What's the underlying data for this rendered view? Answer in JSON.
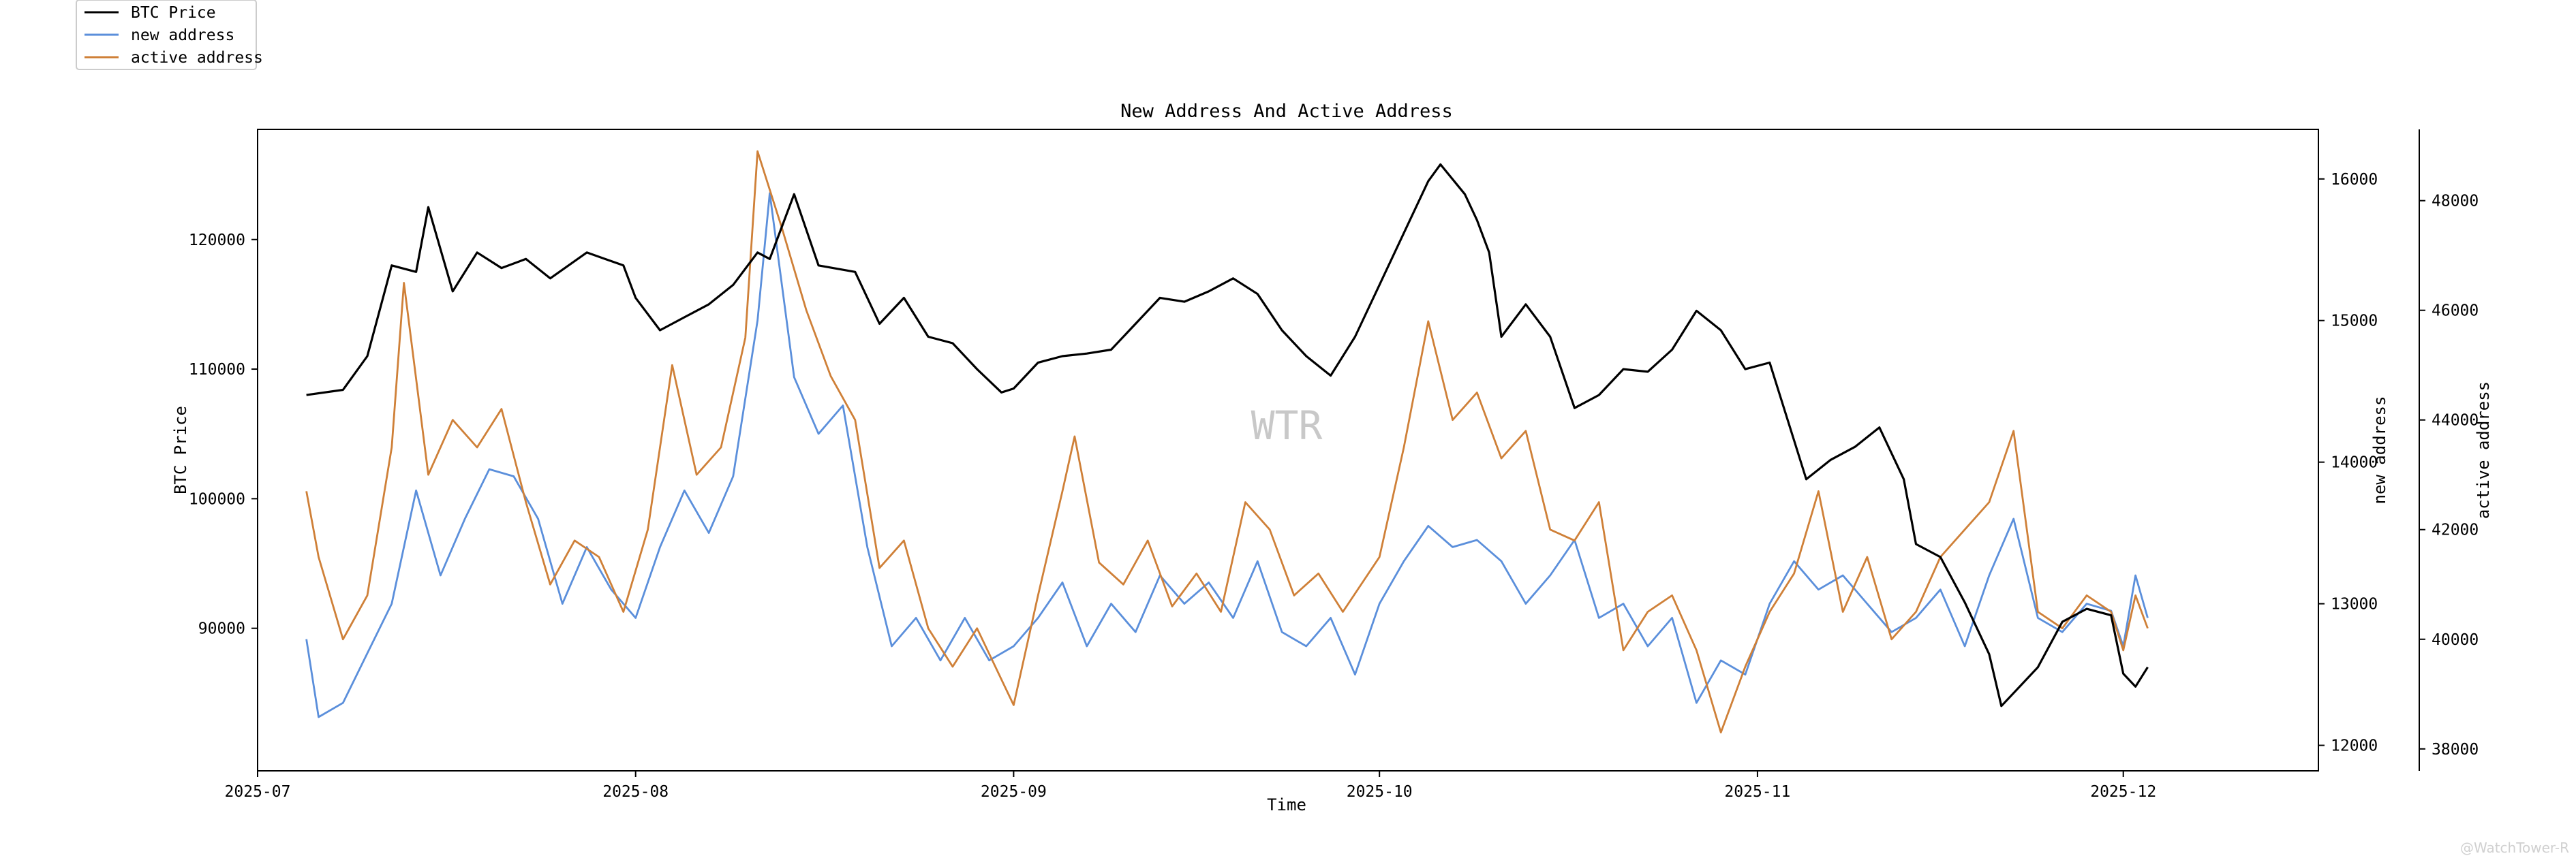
{
  "chart_data": {
    "type": "line",
    "title": "New Address And Active Address",
    "xlabel": "Time",
    "watermark": "WTR",
    "credit": "@WatchTower-R",
    "x_range": [
      "2025-07-01",
      "2025-12-17"
    ],
    "x_ticks": [
      "2025-07",
      "2025-08",
      "2025-09",
      "2025-10",
      "2025-11",
      "2025-12"
    ],
    "axes": [
      {
        "id": "price",
        "label": "BTC Price",
        "side": "left",
        "ylim": [
          79000,
          128500
        ],
        "ticks": [
          90000,
          100000,
          110000,
          120000
        ]
      },
      {
        "id": "new",
        "label": "new address",
        "side": "right",
        "ylim": [
          11820,
          16350
        ],
        "ticks": [
          12000,
          13000,
          14000,
          15000,
          16000
        ]
      },
      {
        "id": "active",
        "label": "active address",
        "side": "right-outer",
        "ylim": [
          37600,
          49300
        ],
        "ticks": [
          38000,
          40000,
          42000,
          44000,
          46000,
          48000
        ]
      }
    ],
    "legend": {
      "placement": "top-left outside"
    },
    "grid": false,
    "series": [
      {
        "name": "BTC Price",
        "axis": "price",
        "color": "#000000",
        "points": [
          [
            "2025-07-05",
            108000
          ],
          [
            "2025-07-08",
            108400
          ],
          [
            "2025-07-10",
            111000
          ],
          [
            "2025-07-12",
            118000
          ],
          [
            "2025-07-14",
            117500
          ],
          [
            "2025-07-15",
            122500
          ],
          [
            "2025-07-17",
            116000
          ],
          [
            "2025-07-19",
            119000
          ],
          [
            "2025-07-21",
            117800
          ],
          [
            "2025-07-23",
            118500
          ],
          [
            "2025-07-25",
            117000
          ],
          [
            "2025-07-28",
            119000
          ],
          [
            "2025-07-31",
            118000
          ],
          [
            "2025-08-01",
            115500
          ],
          [
            "2025-08-03",
            113000
          ],
          [
            "2025-08-05",
            114000
          ],
          [
            "2025-08-07",
            115000
          ],
          [
            "2025-08-09",
            116500
          ],
          [
            "2025-08-11",
            119000
          ],
          [
            "2025-08-12",
            118500
          ],
          [
            "2025-08-14",
            123500
          ],
          [
            "2025-08-16",
            118000
          ],
          [
            "2025-08-19",
            117500
          ],
          [
            "2025-08-21",
            113500
          ],
          [
            "2025-08-23",
            115500
          ],
          [
            "2025-08-25",
            112500
          ],
          [
            "2025-08-27",
            112000
          ],
          [
            "2025-08-29",
            110000
          ],
          [
            "2025-08-31",
            108200
          ],
          [
            "2025-09-01",
            108500
          ],
          [
            "2025-09-03",
            110500
          ],
          [
            "2025-09-05",
            111000
          ],
          [
            "2025-09-07",
            111200
          ],
          [
            "2025-09-09",
            111500
          ],
          [
            "2025-09-11",
            113500
          ],
          [
            "2025-09-13",
            115500
          ],
          [
            "2025-09-15",
            115200
          ],
          [
            "2025-09-17",
            116000
          ],
          [
            "2025-09-19",
            117000
          ],
          [
            "2025-09-21",
            115800
          ],
          [
            "2025-09-23",
            113000
          ],
          [
            "2025-09-25",
            111000
          ],
          [
            "2025-09-27",
            109500
          ],
          [
            "2025-09-29",
            112500
          ],
          [
            "2025-10-01",
            116500
          ],
          [
            "2025-10-03",
            120500
          ],
          [
            "2025-10-05",
            124500
          ],
          [
            "2025-10-06",
            125800
          ],
          [
            "2025-10-08",
            123500
          ],
          [
            "2025-10-09",
            121500
          ],
          [
            "2025-10-10",
            119000
          ],
          [
            "2025-10-11",
            112500
          ],
          [
            "2025-10-13",
            115000
          ],
          [
            "2025-10-15",
            112500
          ],
          [
            "2025-10-17",
            107000
          ],
          [
            "2025-10-19",
            108000
          ],
          [
            "2025-10-21",
            110000
          ],
          [
            "2025-10-23",
            109800
          ],
          [
            "2025-10-25",
            111500
          ],
          [
            "2025-10-27",
            114500
          ],
          [
            "2025-10-29",
            113000
          ],
          [
            "2025-10-31",
            110000
          ],
          [
            "2025-11-02",
            110500
          ],
          [
            "2025-11-04",
            104500
          ],
          [
            "2025-11-05",
            101500
          ],
          [
            "2025-11-07",
            103000
          ],
          [
            "2025-11-09",
            104000
          ],
          [
            "2025-11-11",
            105500
          ],
          [
            "2025-11-13",
            101500
          ],
          [
            "2025-11-14",
            96500
          ],
          [
            "2025-11-16",
            95500
          ],
          [
            "2025-11-18",
            92000
          ],
          [
            "2025-11-20",
            88000
          ],
          [
            "2025-11-21",
            84000
          ],
          [
            "2025-11-22",
            85000
          ],
          [
            "2025-11-24",
            87000
          ],
          [
            "2025-11-26",
            90500
          ],
          [
            "2025-11-28",
            91500
          ],
          [
            "2025-11-30",
            91000
          ],
          [
            "2025-12-01",
            86500
          ],
          [
            "2025-12-02",
            85500
          ],
          [
            "2025-12-03",
            87000
          ]
        ]
      },
      {
        "name": "new address",
        "axis": "new",
        "color": "#5b8fdb",
        "points": [
          [
            "2025-07-05",
            12750
          ],
          [
            "2025-07-06",
            12200
          ],
          [
            "2025-07-08",
            12300
          ],
          [
            "2025-07-10",
            12650
          ],
          [
            "2025-07-12",
            13000
          ],
          [
            "2025-07-14",
            13800
          ],
          [
            "2025-07-16",
            13200
          ],
          [
            "2025-07-18",
            13600
          ],
          [
            "2025-07-20",
            13950
          ],
          [
            "2025-07-22",
            13900
          ],
          [
            "2025-07-24",
            13600
          ],
          [
            "2025-07-26",
            13000
          ],
          [
            "2025-07-28",
            13400
          ],
          [
            "2025-07-30",
            13100
          ],
          [
            "2025-08-01",
            12900
          ],
          [
            "2025-08-03",
            13400
          ],
          [
            "2025-08-05",
            13800
          ],
          [
            "2025-08-07",
            13500
          ],
          [
            "2025-08-09",
            13900
          ],
          [
            "2025-08-11",
            15000
          ],
          [
            "2025-08-12",
            15900
          ],
          [
            "2025-08-14",
            14600
          ],
          [
            "2025-08-16",
            14200
          ],
          [
            "2025-08-18",
            14400
          ],
          [
            "2025-08-20",
            13400
          ],
          [
            "2025-08-22",
            12700
          ],
          [
            "2025-08-24",
            12900
          ],
          [
            "2025-08-26",
            12600
          ],
          [
            "2025-08-28",
            12900
          ],
          [
            "2025-08-30",
            12600
          ],
          [
            "2025-09-01",
            12700
          ],
          [
            "2025-09-03",
            12900
          ],
          [
            "2025-09-05",
            13150
          ],
          [
            "2025-09-07",
            12700
          ],
          [
            "2025-09-09",
            13000
          ],
          [
            "2025-09-11",
            12800
          ],
          [
            "2025-09-13",
            13200
          ],
          [
            "2025-09-15",
            13000
          ],
          [
            "2025-09-17",
            13150
          ],
          [
            "2025-09-19",
            12900
          ],
          [
            "2025-09-21",
            13300
          ],
          [
            "2025-09-23",
            12800
          ],
          [
            "2025-09-25",
            12700
          ],
          [
            "2025-09-27",
            12900
          ],
          [
            "2025-09-29",
            12500
          ],
          [
            "2025-10-01",
            13000
          ],
          [
            "2025-10-03",
            13300
          ],
          [
            "2025-10-05",
            13550
          ],
          [
            "2025-10-07",
            13400
          ],
          [
            "2025-10-09",
            13450
          ],
          [
            "2025-10-11",
            13300
          ],
          [
            "2025-10-13",
            13000
          ],
          [
            "2025-10-15",
            13200
          ],
          [
            "2025-10-17",
            13450
          ],
          [
            "2025-10-19",
            12900
          ],
          [
            "2025-10-21",
            13000
          ],
          [
            "2025-10-23",
            12700
          ],
          [
            "2025-10-25",
            12900
          ],
          [
            "2025-10-27",
            12300
          ],
          [
            "2025-10-29",
            12600
          ],
          [
            "2025-10-31",
            12500
          ],
          [
            "2025-11-02",
            13000
          ],
          [
            "2025-11-04",
            13300
          ],
          [
            "2025-11-06",
            13100
          ],
          [
            "2025-11-08",
            13200
          ],
          [
            "2025-11-10",
            13000
          ],
          [
            "2025-11-12",
            12800
          ],
          [
            "2025-11-14",
            12900
          ],
          [
            "2025-11-16",
            13100
          ],
          [
            "2025-11-18",
            12700
          ],
          [
            "2025-11-20",
            13200
          ],
          [
            "2025-11-22",
            13600
          ],
          [
            "2025-11-24",
            12900
          ],
          [
            "2025-11-26",
            12800
          ],
          [
            "2025-11-28",
            13000
          ],
          [
            "2025-11-30",
            12950
          ],
          [
            "2025-12-01",
            12700
          ],
          [
            "2025-12-02",
            13200
          ],
          [
            "2025-12-03",
            12900
          ]
        ]
      },
      {
        "name": "active address",
        "axis": "active",
        "color": "#cf8038",
        "points": [
          [
            "2025-07-05",
            42700
          ],
          [
            "2025-07-06",
            41500
          ],
          [
            "2025-07-08",
            40000
          ],
          [
            "2025-07-10",
            40800
          ],
          [
            "2025-07-12",
            43500
          ],
          [
            "2025-07-13",
            46500
          ],
          [
            "2025-07-15",
            43000
          ],
          [
            "2025-07-17",
            44000
          ],
          [
            "2025-07-19",
            43500
          ],
          [
            "2025-07-21",
            44200
          ],
          [
            "2025-07-23",
            42500
          ],
          [
            "2025-07-25",
            41000
          ],
          [
            "2025-07-27",
            41800
          ],
          [
            "2025-07-29",
            41500
          ],
          [
            "2025-07-31",
            40500
          ],
          [
            "2025-08-02",
            42000
          ],
          [
            "2025-08-04",
            45000
          ],
          [
            "2025-08-06",
            43000
          ],
          [
            "2025-08-08",
            43500
          ],
          [
            "2025-08-10",
            45500
          ],
          [
            "2025-08-11",
            48900
          ],
          [
            "2025-08-13",
            47500
          ],
          [
            "2025-08-15",
            46000
          ],
          [
            "2025-08-17",
            44800
          ],
          [
            "2025-08-19",
            44000
          ],
          [
            "2025-08-21",
            41300
          ],
          [
            "2025-08-23",
            41800
          ],
          [
            "2025-08-25",
            40200
          ],
          [
            "2025-08-27",
            39500
          ],
          [
            "2025-08-29",
            40200
          ],
          [
            "2025-09-01",
            38800
          ],
          [
            "2025-09-03",
            40800
          ],
          [
            "2025-09-05",
            42700
          ],
          [
            "2025-09-06",
            43700
          ],
          [
            "2025-09-08",
            41400
          ],
          [
            "2025-09-10",
            41000
          ],
          [
            "2025-09-12",
            41800
          ],
          [
            "2025-09-14",
            40600
          ],
          [
            "2025-09-16",
            41200
          ],
          [
            "2025-09-18",
            40500
          ],
          [
            "2025-09-20",
            42500
          ],
          [
            "2025-09-22",
            42000
          ],
          [
            "2025-09-24",
            40800
          ],
          [
            "2025-09-26",
            41200
          ],
          [
            "2025-09-28",
            40500
          ],
          [
            "2025-10-01",
            41500
          ],
          [
            "2025-10-03",
            43500
          ],
          [
            "2025-10-05",
            45800
          ],
          [
            "2025-10-07",
            44000
          ],
          [
            "2025-10-09",
            44500
          ],
          [
            "2025-10-11",
            43300
          ],
          [
            "2025-10-13",
            43800
          ],
          [
            "2025-10-15",
            42000
          ],
          [
            "2025-10-17",
            41800
          ],
          [
            "2025-10-19",
            42500
          ],
          [
            "2025-10-21",
            39800
          ],
          [
            "2025-10-23",
            40500
          ],
          [
            "2025-10-25",
            40800
          ],
          [
            "2025-10-27",
            39800
          ],
          [
            "2025-10-29",
            38300
          ],
          [
            "2025-10-31",
            39500
          ],
          [
            "2025-11-02",
            40500
          ],
          [
            "2025-11-04",
            41200
          ],
          [
            "2025-11-06",
            42700
          ],
          [
            "2025-11-08",
            40500
          ],
          [
            "2025-11-10",
            41500
          ],
          [
            "2025-11-12",
            40000
          ],
          [
            "2025-11-14",
            40500
          ],
          [
            "2025-11-16",
            41500
          ],
          [
            "2025-11-18",
            42000
          ],
          [
            "2025-11-20",
            42500
          ],
          [
            "2025-11-22",
            43800
          ],
          [
            "2025-11-24",
            40500
          ],
          [
            "2025-11-26",
            40200
          ],
          [
            "2025-11-28",
            40800
          ],
          [
            "2025-11-30",
            40500
          ],
          [
            "2025-12-01",
            39800
          ],
          [
            "2025-12-02",
            40800
          ],
          [
            "2025-12-03",
            40200
          ]
        ]
      }
    ]
  }
}
